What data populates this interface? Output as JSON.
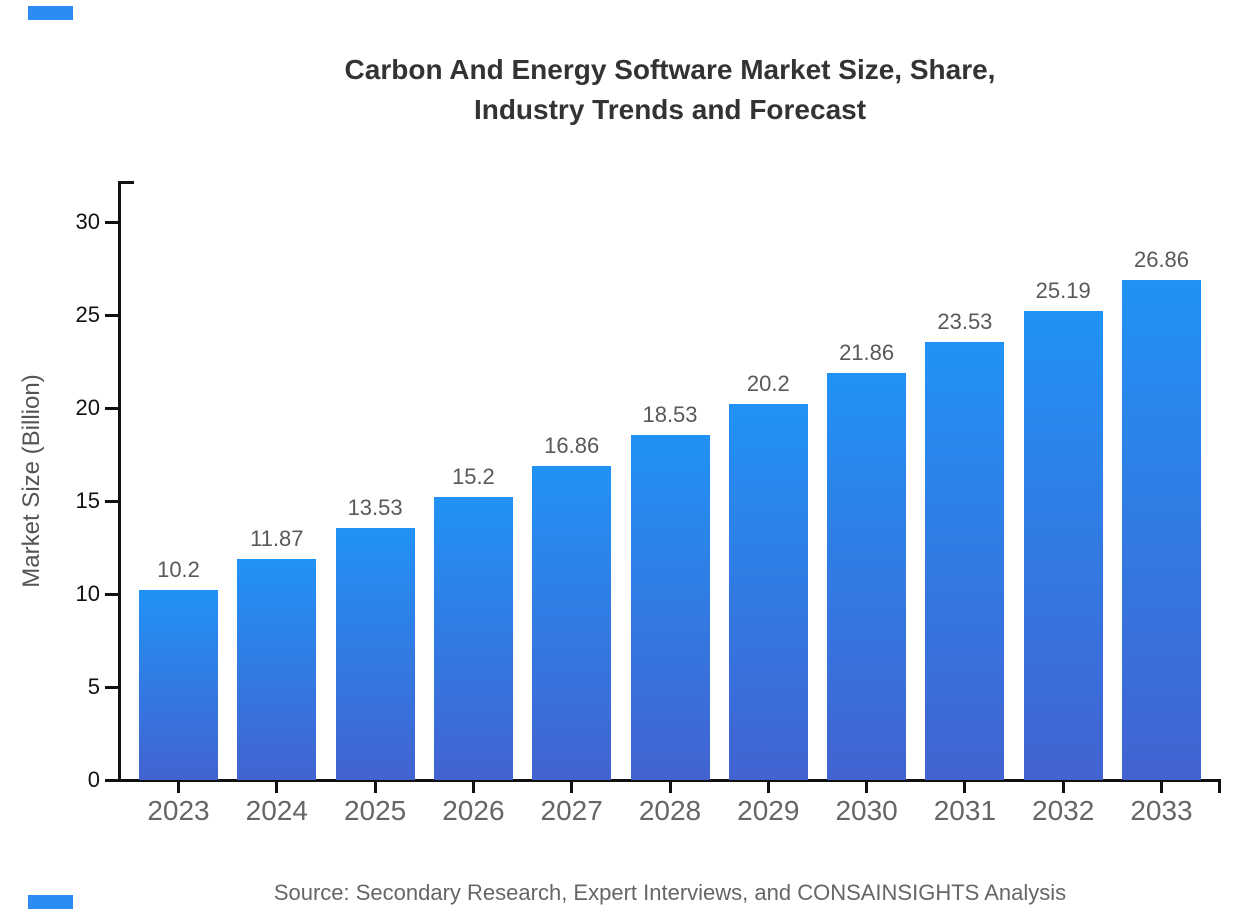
{
  "title": {
    "line1": "Carbon And Energy Software Market Size, Share,",
    "line2": "Industry Trends and Forecast"
  },
  "source": "Source: Secondary Research, Expert Interviews, and CONSAINSIGHTS Analysis",
  "colors": {
    "accent_blue": "#2b8df3",
    "bar_gradient_top": "#2192f5",
    "bar_gradient_bottom": "#4263d0",
    "axis": "#111111",
    "title_text": "#333333",
    "year_text": "#666666",
    "value_text": "#595959"
  },
  "chart_data": {
    "type": "bar",
    "title": "Carbon And Energy Software Market Size, Share, Industry Trends and Forecast",
    "categories": [
      "2023",
      "2024",
      "2025",
      "2026",
      "2027",
      "2028",
      "2029",
      "2030",
      "2031",
      "2032",
      "2033"
    ],
    "values": [
      10.2,
      11.87,
      13.53,
      15.2,
      16.86,
      18.53,
      20.2,
      21.86,
      23.53,
      25.19,
      26.86
    ],
    "value_labels": [
      "10.2",
      "11.87",
      "13.53",
      "15.2",
      "16.86",
      "18.53",
      "20.2",
      "21.86",
      "23.53",
      "25.19",
      "26.86"
    ],
    "xlabel": "",
    "ylabel": "Market Size (Billion)",
    "ylim": [
      0,
      32
    ],
    "yticks": [
      0,
      5,
      10,
      15,
      20,
      25,
      30
    ],
    "grid": false,
    "legend": "none"
  }
}
